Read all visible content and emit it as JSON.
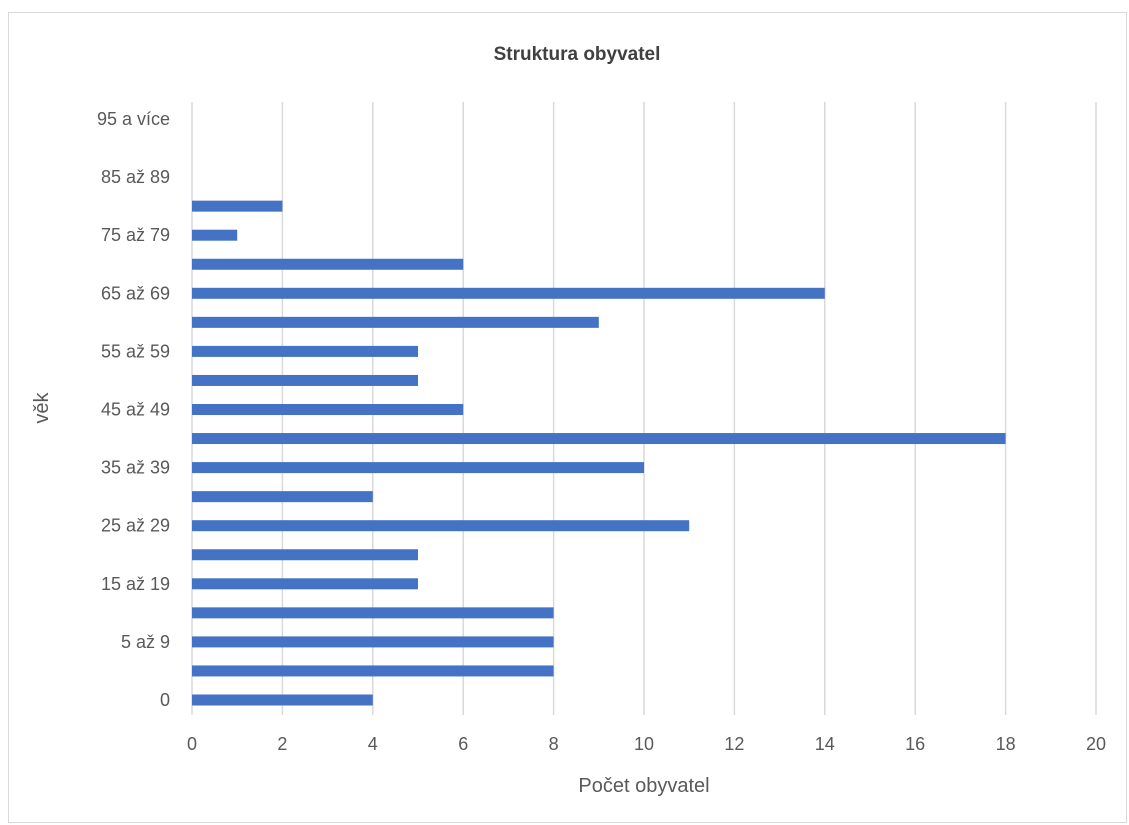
{
  "chart_data": {
    "type": "bar",
    "orientation": "horizontal",
    "title": "Struktura obyvatel",
    "xlabel": "Počet obyvatel",
    "ylabel": "věk",
    "xlim": [
      0,
      20
    ],
    "x_ticks": [
      "0",
      "2",
      "4",
      "6",
      "8",
      "10",
      "12",
      "14",
      "16",
      "18",
      "20"
    ],
    "categories": [
      "0",
      "",
      "5 až 9",
      "",
      "15 až 19",
      "",
      "25 až 29",
      "",
      "35 až 39",
      "",
      "45 až 49",
      "",
      "55 až 59",
      "",
      "65 až 69",
      "",
      "75 až 79",
      "",
      "85 až 89",
      "",
      "95 a více"
    ],
    "values": [
      4,
      8,
      8,
      8,
      5,
      5,
      11,
      4,
      10,
      18,
      6,
      5,
      5,
      9,
      14,
      6,
      1,
      2,
      0,
      0,
      0
    ],
    "grid": "vertical",
    "bar_color": "#4472c4",
    "legend": "none"
  }
}
